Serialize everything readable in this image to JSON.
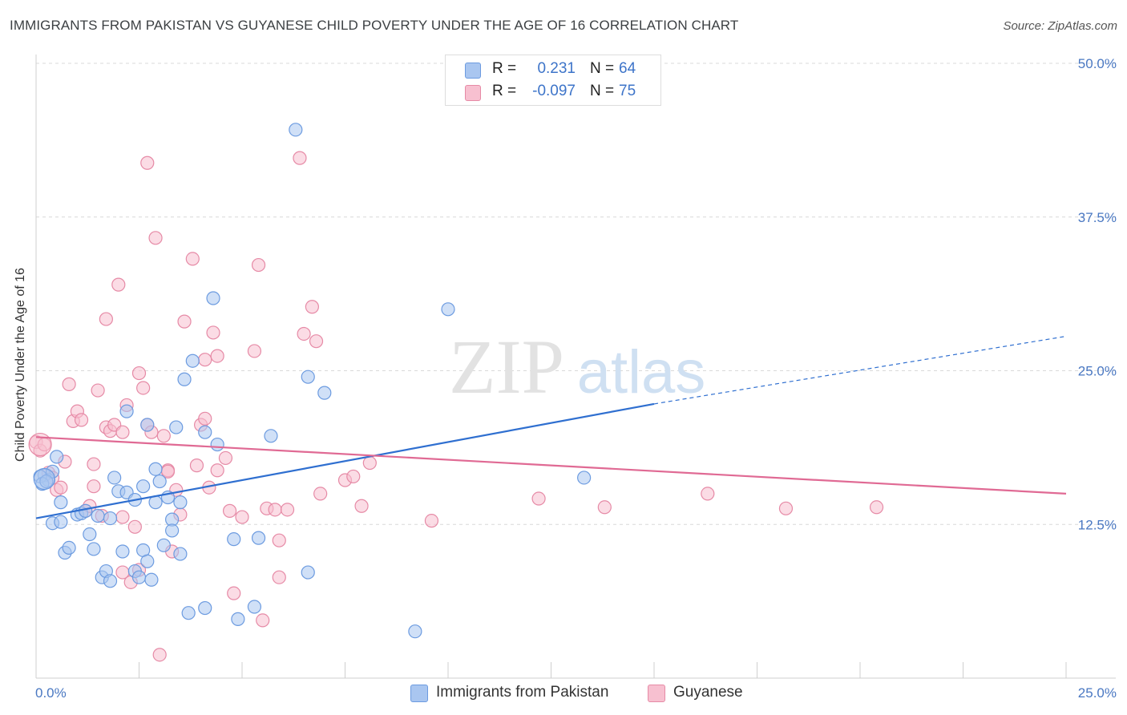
{
  "title": "IMMIGRANTS FROM PAKISTAN VS GUYANESE CHILD POVERTY UNDER THE AGE OF 16 CORRELATION CHART",
  "source": "Source: ZipAtlas.com",
  "watermark": {
    "zip": "ZIP",
    "atlas": "atlas"
  },
  "legend": {
    "rows": [
      {
        "r_label": "R =",
        "r_value": "0.231",
        "n_label": "N =",
        "n_value": "64",
        "color": "#a9c6f0",
        "border": "#6c9be0"
      },
      {
        "r_label": "R =",
        "r_value": "-0.097",
        "n_label": "N =",
        "n_value": "75",
        "color": "#f7c0d0",
        "border": "#e68aa6"
      }
    ]
  },
  "bottom_legend": [
    {
      "label": "Immigrants from Pakistan",
      "color": "#a9c6f0",
      "border": "#6c9be0"
    },
    {
      "label": "Guyanese",
      "color": "#f7c0d0",
      "border": "#e68aa6"
    }
  ],
  "chart_data": {
    "type": "scatter",
    "title": "IMMIGRANTS FROM PAKISTAN VS GUYANESE CHILD POVERTY UNDER THE AGE OF 16 CORRELATION CHART",
    "xlabel": "",
    "ylabel": "Child Poverty Under the Age of 16",
    "xlim": [
      0,
      25
    ],
    "ylim": [
      0,
      50
    ],
    "x_tick_labels": [
      "0.0%",
      "25.0%"
    ],
    "y_ticks": [
      12.5,
      25.0,
      37.5,
      50.0
    ],
    "y_tick_labels": [
      "12.5%",
      "25.0%",
      "37.5%",
      "50.0%"
    ],
    "grid": "horizontal dashed",
    "legend_position": "top-center",
    "series": [
      {
        "name": "Immigrants from Pakistan",
        "color": "#6c9be0",
        "fill": "#a9c6f0",
        "trend": {
          "x": [
            0,
            15
          ],
          "y": [
            13.0,
            22.3
          ],
          "dashed_to": {
            "x": 25,
            "y": 27.8
          },
          "color": "#2f6fd0"
        },
        "points": [
          [
            0.2,
            16.5
          ],
          [
            0.3,
            16.1
          ],
          [
            0.4,
            16.8
          ],
          [
            0.5,
            18.0
          ],
          [
            0.6,
            14.3
          ],
          [
            0.4,
            12.6
          ],
          [
            0.6,
            12.7
          ],
          [
            0.7,
            10.2
          ],
          [
            0.8,
            10.6
          ],
          [
            1.0,
            13.3
          ],
          [
            1.1,
            13.4
          ],
          [
            1.2,
            13.6
          ],
          [
            1.3,
            11.7
          ],
          [
            1.4,
            10.5
          ],
          [
            1.5,
            13.2
          ],
          [
            1.6,
            8.2
          ],
          [
            1.7,
            8.7
          ],
          [
            1.8,
            7.9
          ],
          [
            1.8,
            13.0
          ],
          [
            1.9,
            16.3
          ],
          [
            2.0,
            15.2
          ],
          [
            2.1,
            10.3
          ],
          [
            2.2,
            15.1
          ],
          [
            2.2,
            21.7
          ],
          [
            2.4,
            14.5
          ],
          [
            2.4,
            8.7
          ],
          [
            2.5,
            8.2
          ],
          [
            2.6,
            15.6
          ],
          [
            2.6,
            10.4
          ],
          [
            2.7,
            20.6
          ],
          [
            2.7,
            9.5
          ],
          [
            2.8,
            8.0
          ],
          [
            2.9,
            17.0
          ],
          [
            2.9,
            14.3
          ],
          [
            3.0,
            16.0
          ],
          [
            3.1,
            10.8
          ],
          [
            3.2,
            14.7
          ],
          [
            3.3,
            12.9
          ],
          [
            3.3,
            12.0
          ],
          [
            3.4,
            20.4
          ],
          [
            3.5,
            14.3
          ],
          [
            3.5,
            10.1
          ],
          [
            3.6,
            24.3
          ],
          [
            3.7,
            5.3
          ],
          [
            3.8,
            25.8
          ],
          [
            4.1,
            20.0
          ],
          [
            4.1,
            5.7
          ],
          [
            4.3,
            30.9
          ],
          [
            4.4,
            19.0
          ],
          [
            4.8,
            11.3
          ],
          [
            4.9,
            4.8
          ],
          [
            5.3,
            5.8
          ],
          [
            5.4,
            11.4
          ],
          [
            5.7,
            19.7
          ],
          [
            6.3,
            44.6
          ],
          [
            6.6,
            8.6
          ],
          [
            6.6,
            24.5
          ],
          [
            7.0,
            23.2
          ],
          [
            9.2,
            3.8
          ],
          [
            10.0,
            30.0
          ],
          [
            13.3,
            16.3
          ],
          [
            0.1,
            16.4
          ],
          [
            0.15,
            15.8
          ],
          [
            0.25,
            16.0
          ]
        ]
      },
      {
        "name": "Guyanese",
        "color": "#e68aa6",
        "fill": "#f7c0d0",
        "trend": {
          "x": [
            0,
            25
          ],
          "y": [
            19.6,
            15.0
          ],
          "color": "#e06a94"
        },
        "points": [
          [
            0.0,
            19.2
          ],
          [
            0.1,
            18.5
          ],
          [
            0.2,
            19.0
          ],
          [
            0.3,
            16.7
          ],
          [
            0.4,
            16.3
          ],
          [
            0.5,
            15.3
          ],
          [
            0.6,
            15.5
          ],
          [
            0.7,
            17.6
          ],
          [
            0.8,
            23.9
          ],
          [
            0.9,
            20.9
          ],
          [
            1.0,
            21.7
          ],
          [
            1.1,
            21.0
          ],
          [
            1.2,
            13.6
          ],
          [
            1.3,
            14.0
          ],
          [
            1.4,
            17.4
          ],
          [
            1.4,
            15.6
          ],
          [
            1.5,
            23.4
          ],
          [
            1.6,
            13.2
          ],
          [
            1.7,
            20.4
          ],
          [
            1.7,
            29.2
          ],
          [
            1.8,
            20.1
          ],
          [
            1.9,
            20.6
          ],
          [
            2.0,
            32.0
          ],
          [
            2.1,
            8.6
          ],
          [
            2.1,
            20.0
          ],
          [
            2.1,
            13.1
          ],
          [
            2.2,
            22.2
          ],
          [
            2.3,
            7.8
          ],
          [
            2.4,
            12.3
          ],
          [
            2.5,
            24.8
          ],
          [
            2.5,
            8.8
          ],
          [
            2.6,
            23.6
          ],
          [
            2.7,
            20.6
          ],
          [
            2.7,
            41.9
          ],
          [
            2.8,
            20.0
          ],
          [
            2.9,
            35.8
          ],
          [
            3.0,
            1.9
          ],
          [
            3.1,
            19.7
          ],
          [
            3.2,
            16.9
          ],
          [
            3.2,
            16.8
          ],
          [
            3.3,
            10.3
          ],
          [
            3.4,
            15.3
          ],
          [
            3.5,
            13.3
          ],
          [
            3.6,
            29.0
          ],
          [
            3.8,
            34.1
          ],
          [
            3.9,
            17.3
          ],
          [
            4.0,
            20.6
          ],
          [
            4.1,
            25.9
          ],
          [
            4.1,
            21.1
          ],
          [
            4.2,
            15.5
          ],
          [
            4.3,
            28.1
          ],
          [
            4.4,
            16.9
          ],
          [
            4.4,
            26.2
          ],
          [
            4.6,
            17.9
          ],
          [
            4.7,
            13.6
          ],
          [
            4.8,
            6.9
          ],
          [
            5.0,
            13.1
          ],
          [
            5.3,
            26.6
          ],
          [
            5.4,
            33.6
          ],
          [
            5.5,
            4.7
          ],
          [
            5.6,
            13.8
          ],
          [
            5.8,
            13.7
          ],
          [
            5.9,
            11.2
          ],
          [
            5.9,
            8.2
          ],
          [
            6.1,
            13.7
          ],
          [
            6.4,
            42.3
          ],
          [
            6.5,
            28.0
          ],
          [
            6.7,
            30.2
          ],
          [
            6.8,
            27.4
          ],
          [
            6.9,
            15.0
          ],
          [
            7.5,
            16.1
          ],
          [
            7.7,
            16.4
          ],
          [
            7.9,
            14.0
          ],
          [
            8.1,
            17.5
          ],
          [
            9.6,
            12.8
          ]
        ]
      }
    ],
    "extra_points_guyanese": [
      [
        12.2,
        14.6
      ],
      [
        13.8,
        13.9
      ],
      [
        16.3,
        15.0
      ],
      [
        18.2,
        13.8
      ],
      [
        20.4,
        13.9
      ]
    ]
  }
}
